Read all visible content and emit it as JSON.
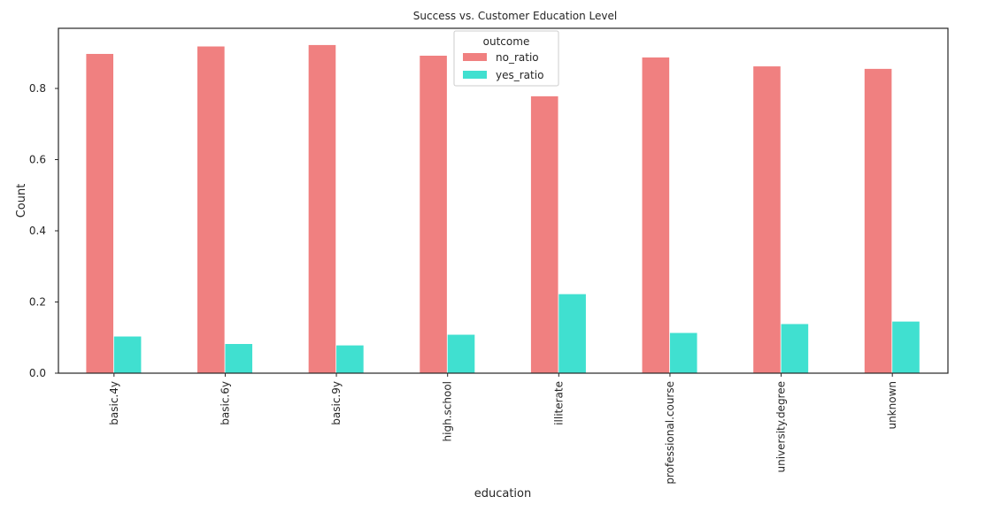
{
  "chart_data": {
    "type": "bar",
    "title": "Success vs. Customer Education Level",
    "xlabel": "education",
    "ylabel": "Count",
    "categories": [
      "basic.4y",
      "basic.6y",
      "basic.9y",
      "high.school",
      "illiterate",
      "professional.course",
      "university.degree",
      "unknown"
    ],
    "series": [
      {
        "name": "no_ratio",
        "color": "#f08080",
        "values": [
          0.897,
          0.918,
          0.922,
          0.892,
          0.778,
          0.887,
          0.862,
          0.855
        ]
      },
      {
        "name": "yes_ratio",
        "color": "#40e0d0",
        "values": [
          0.103,
          0.082,
          0.078,
          0.108,
          0.222,
          0.113,
          0.138,
          0.145
        ]
      }
    ],
    "ylim": [
      0,
      0.969
    ],
    "yticks": [
      0.0,
      0.2,
      0.4,
      0.6,
      0.8
    ],
    "ytick_labels": [
      "0.0",
      "0.2",
      "0.4",
      "0.6",
      "0.8"
    ],
    "legend": {
      "title": "outcome",
      "placement": "top-center"
    },
    "grid": false
  }
}
